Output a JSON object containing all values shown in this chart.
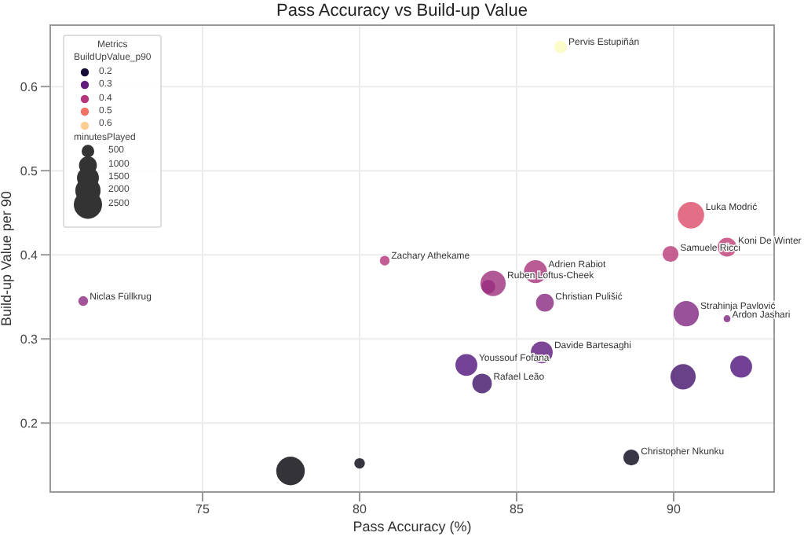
{
  "chart_data": {
    "type": "bubble",
    "title": "Pass Accuracy vs Build-up Value",
    "xlabel": "Pass Accuracy (%)",
    "ylabel": "Build-up Value per 90",
    "legend_title": "Metrics",
    "clabel": "BuildUpValue_p90",
    "x": [
      86.4,
      90.55,
      91.7,
      89.9,
      80.8,
      71.2,
      85.6,
      84.25,
      84.1,
      85.9,
      90.4,
      91.7,
      85.8,
      83.4,
      83.9,
      90.3,
      92.15,
      88.65,
      77.8,
      80.0
    ],
    "values": [
      0.647,
      0.447,
      0.409,
      0.401,
      0.393,
      0.345,
      0.38,
      0.366,
      0.362,
      0.343,
      0.33,
      0.324,
      0.284,
      0.269,
      0.247,
      0.255,
      0.267,
      0.159,
      0.143,
      0.152
    ],
    "colors": [
      "#fbfabd",
      "#dc4b68",
      "#c03c75",
      "#b93878",
      "#b3357a",
      "#8c297f",
      "#a8327b",
      "#9d2e7d",
      "#9a2d7e",
      "#8a2880",
      "#802581",
      "#7c2380",
      "#5c177c",
      "#50127b",
      "#3e1166",
      "#44116c",
      "#4f127b",
      "#080517",
      "#010005",
      "#05030f"
    ],
    "sizes": [
      500,
      2200,
      1100,
      800,
      300,
      300,
      1650,
      2000,
      600,
      1000,
      2000,
      150,
      1500,
      1500,
      1200,
      2000,
      1500,
      800,
      2550,
      350
    ],
    "size_legend": [
      500,
      1000,
      1500,
      2000,
      2500
    ],
    "xlim": [
      70.15,
      93.2
    ],
    "xticks": [
      75,
      80,
      85,
      90
    ],
    "ylim": [
      0.118,
      0.673
    ],
    "yticks": [
      0.2,
      0.3,
      0.4,
      0.5,
      0.6
    ],
    "grid": true,
    "annotations": [
      "0.2",
      "0.3",
      "0.4",
      "0.5",
      "0.6",
      "minutesPlayed",
      {
        "text": "Pervis Estupiñán",
        "x": 86.4,
        "y": 0.647
      },
      {
        "text": "Luka Modrić",
        "x": 90.55,
        "y": 0.447
      },
      {
        "text": "Koni De Winter",
        "x": 91.7,
        "y": 0.409
      },
      {
        "text": "Samuele Ricci",
        "x": 89.9,
        "y": 0.401
      },
      {
        "text": "Zachary Athekame",
        "x": 80.8,
        "y": 0.393
      },
      {
        "text": "Niclas Füllkrug",
        "x": 71.2,
        "y": 0.345
      },
      {
        "text": "Adrien Rabiot",
        "x": 85.6,
        "y": 0.38
      },
      {
        "text": "Ruben Loftus-Cheek",
        "x": 84.25,
        "y": 0.366
      },
      {
        "text": "Christian Pulišić",
        "x": 85.9,
        "y": 0.343
      },
      {
        "text": "Strahinja Pavlović",
        "x": 90.4,
        "y": 0.33
      },
      {
        "text": "Ardon Jashari",
        "x": 91.7,
        "y": 0.324
      },
      {
        "text": "Davide Bartesaghi",
        "x": 85.8,
        "y": 0.284
      },
      {
        "text": "Youssouf Fofana",
        "x": 83.4,
        "y": 0.269
      },
      {
        "text": "Rafael Leão",
        "x": 83.9,
        "y": 0.247
      },
      {
        "text": "Christopher Nkunku",
        "x": 88.65,
        "y": 0.159
      }
    ]
  }
}
